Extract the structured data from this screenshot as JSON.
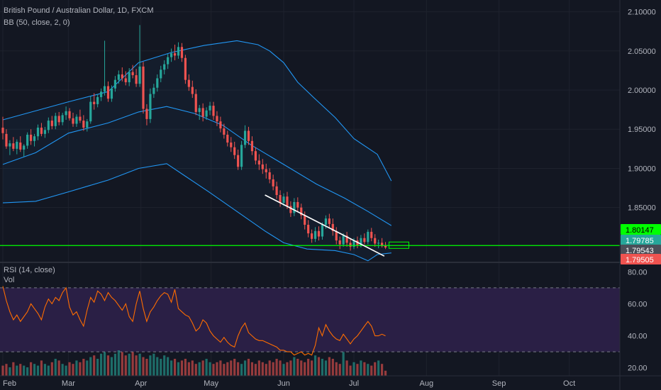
{
  "header": {
    "title": "British Pound / Australian Dollar, 1D, FXCM",
    "bb_label": "BB (50, close, 2, 0)",
    "rsi_label": "RSI (14, close)",
    "vol_label": "Vol"
  },
  "colors": {
    "background": "#131722",
    "grid": "#1e222d",
    "up": "#26a69a",
    "down": "#ef5350",
    "bb": "#2196f3",
    "rsi_line": "#ff6d00",
    "rsi_band": "#2a1f45",
    "horizontal_line": "#00ff00",
    "trendline": "#ffffff"
  },
  "chart_data": [
    {
      "type": "candlestick",
      "title": "British Pound / Australian Dollar, 1D, FXCM",
      "indicator": "BB (50, close, 2, 0)",
      "x_tick_labels": [
        "Feb",
        "Mar",
        "Apr",
        "May",
        "Jun",
        "Jul",
        "Aug",
        "Sep",
        "Oct"
      ],
      "x_tick_days": [
        0,
        28,
        59,
        89,
        120,
        150,
        181,
        212,
        242
      ],
      "y_tick_labels": [
        "2.10000",
        "2.05000",
        "2.00000",
        "1.95000",
        "1.90000",
        "1.85000"
      ],
      "ylim": [
        1.78,
        2.115
      ],
      "price_labels": [
        {
          "text": "1.80147",
          "value": 1.80147,
          "color": "#00ff00",
          "text_color": "#000000"
        },
        {
          "text": "1.79785",
          "value": 1.79785,
          "color": "#26a69a",
          "text_color": "#ffffff"
        },
        {
          "text": "1.79543",
          "value": 1.79543,
          "color": "#4a4e58",
          "text_color": "#ffffff"
        },
        {
          "text": "1.79505",
          "value": 1.79505,
          "color": "#ef5350",
          "text_color": "#ffffff"
        }
      ],
      "horizontal_line": 1.80147,
      "trendline": {
        "start": [
          112,
          1.866
        ],
        "end": [
          163,
          1.788
        ]
      },
      "candles_ohlc": [
        [
          1.952,
          1.966,
          1.937,
          1.945
        ],
        [
          1.944,
          1.95,
          1.925,
          1.928
        ],
        [
          1.928,
          1.936,
          1.917,
          1.932
        ],
        [
          1.932,
          1.94,
          1.922,
          1.925
        ],
        [
          1.925,
          1.937,
          1.918,
          1.934
        ],
        [
          1.933,
          1.941,
          1.921,
          1.924
        ],
        [
          1.924,
          1.931,
          1.915,
          1.929
        ],
        [
          1.929,
          1.946,
          1.925,
          1.943
        ],
        [
          1.943,
          1.95,
          1.93,
          1.935
        ],
        [
          1.935,
          1.944,
          1.928,
          1.941
        ],
        [
          1.941,
          1.956,
          1.936,
          1.952
        ],
        [
          1.952,
          1.958,
          1.941,
          1.944
        ],
        [
          1.944,
          1.953,
          1.939,
          1.949
        ],
        [
          1.949,
          1.965,
          1.945,
          1.961
        ],
        [
          1.961,
          1.967,
          1.95,
          1.954
        ],
        [
          1.954,
          1.971,
          1.95,
          1.967
        ],
        [
          1.967,
          1.972,
          1.955,
          1.959
        ],
        [
          1.959,
          1.971,
          1.955,
          1.968
        ],
        [
          1.968,
          1.979,
          1.962,
          1.973
        ],
        [
          1.973,
          1.977,
          1.961,
          1.964
        ],
        [
          1.964,
          1.971,
          1.953,
          1.957
        ],
        [
          1.957,
          1.969,
          1.953,
          1.966
        ],
        [
          1.966,
          1.975,
          1.958,
          1.961
        ],
        [
          1.961,
          1.968,
          1.948,
          1.952
        ],
        [
          1.952,
          1.963,
          1.947,
          1.96
        ],
        [
          1.96,
          1.992,
          1.957,
          1.985
        ],
        [
          1.985,
          1.996,
          1.975,
          1.982
        ],
        [
          1.982,
          1.995,
          1.978,
          1.991
        ],
        [
          1.991,
          2.002,
          1.986,
          1.998
        ],
        [
          1.998,
          2.063,
          1.993,
          2.005
        ],
        [
          2.005,
          2.011,
          1.985,
          1.989
        ],
        [
          1.989,
          2.006,
          1.985,
          2.002
        ],
        [
          2.002,
          2.018,
          1.998,
          2.013
        ],
        [
          2.013,
          2.025,
          2.008,
          2.02
        ],
        [
          2.02,
          2.029,
          2.011,
          2.015
        ],
        [
          2.015,
          2.024,
          2.006,
          2.01
        ],
        [
          2.01,
          2.028,
          2.005,
          2.023
        ],
        [
          2.023,
          2.032,
          2.015,
          2.019
        ],
        [
          2.019,
          2.027,
          2.004,
          2.008
        ],
        [
          2.008,
          2.083,
          2.004,
          2.03
        ],
        [
          2.03,
          2.036,
          1.97,
          1.976
        ],
        [
          1.976,
          1.982,
          1.955,
          1.963
        ],
        [
          1.963,
          2.002,
          1.958,
          1.995
        ],
        [
          1.995,
          2.008,
          1.99,
          2.003
        ],
        [
          2.003,
          2.02,
          1.998,
          2.015
        ],
        [
          2.015,
          2.031,
          2.01,
          2.026
        ],
        [
          2.026,
          2.038,
          2.02,
          2.033
        ],
        [
          2.033,
          2.046,
          2.027,
          2.042
        ],
        [
          2.042,
          2.053,
          2.036,
          2.047
        ],
        [
          2.047,
          2.058,
          2.038,
          2.044
        ],
        [
          2.044,
          2.061,
          2.04,
          2.055
        ],
        [
          2.055,
          2.06,
          2.036,
          2.041
        ],
        [
          2.041,
          2.045,
          2.008,
          2.013
        ],
        [
          2.013,
          2.02,
          1.999,
          2.004
        ],
        [
          2.004,
          2.012,
          1.99,
          1.995
        ],
        [
          1.995,
          2.001,
          1.968,
          1.972
        ],
        [
          1.972,
          1.981,
          1.962,
          1.977
        ],
        [
          1.977,
          1.983,
          1.96,
          1.966
        ],
        [
          1.966,
          1.978,
          1.962,
          1.974
        ],
        [
          1.974,
          1.985,
          1.968,
          1.98
        ],
        [
          1.98,
          1.985,
          1.962,
          1.967
        ],
        [
          1.967,
          1.973,
          1.954,
          1.96
        ],
        [
          1.96,
          1.966,
          1.946,
          1.951
        ],
        [
          1.951,
          1.957,
          1.938,
          1.943
        ],
        [
          1.943,
          1.948,
          1.928,
          1.933
        ],
        [
          1.933,
          1.94,
          1.921,
          1.927
        ],
        [
          1.927,
          1.934,
          1.912,
          1.917
        ],
        [
          1.917,
          1.924,
          1.898,
          1.902
        ],
        [
          1.902,
          1.935,
          1.898,
          1.93
        ],
        [
          1.93,
          1.955,
          1.926,
          1.948
        ],
        [
          1.948,
          1.953,
          1.93,
          1.935
        ],
        [
          1.935,
          1.941,
          1.917,
          1.922
        ],
        [
          1.922,
          1.927,
          1.905,
          1.91
        ],
        [
          1.91,
          1.918,
          1.898,
          1.905
        ],
        [
          1.905,
          1.912,
          1.893,
          1.899
        ],
        [
          1.899,
          1.906,
          1.887,
          1.895
        ],
        [
          1.895,
          1.9,
          1.881,
          1.886
        ],
        [
          1.886,
          1.892,
          1.872,
          1.877
        ],
        [
          1.877,
          1.883,
          1.861,
          1.866
        ],
        [
          1.866,
          1.872,
          1.851,
          1.856
        ],
        [
          1.856,
          1.868,
          1.852,
          1.864
        ],
        [
          1.864,
          1.87,
          1.848,
          1.852
        ],
        [
          1.852,
          1.858,
          1.838,
          1.843
        ],
        [
          1.843,
          1.862,
          1.839,
          1.857
        ],
        [
          1.857,
          1.863,
          1.845,
          1.85
        ],
        [
          1.85,
          1.855,
          1.835,
          1.84
        ],
        [
          1.84,
          1.845,
          1.822,
          1.828
        ],
        [
          1.828,
          1.834,
          1.812,
          1.817
        ],
        [
          1.817,
          1.822,
          1.805,
          1.81
        ],
        [
          1.81,
          1.825,
          1.806,
          1.82
        ],
        [
          1.82,
          1.826,
          1.808,
          1.813
        ],
        [
          1.813,
          1.831,
          1.809,
          1.828
        ],
        [
          1.828,
          1.84,
          1.823,
          1.836
        ],
        [
          1.836,
          1.842,
          1.824,
          1.829
        ],
        [
          1.829,
          1.836,
          1.814,
          1.82
        ],
        [
          1.82,
          1.825,
          1.803,
          1.808
        ],
        [
          1.808,
          1.813,
          1.797,
          1.803
        ],
        [
          1.803,
          1.817,
          1.8,
          1.814
        ],
        [
          1.814,
          1.819,
          1.8,
          1.805
        ],
        [
          1.805,
          1.81,
          1.795,
          1.8
        ],
        [
          1.8,
          1.811,
          1.797,
          1.808
        ],
        [
          1.808,
          1.813,
          1.798,
          1.802
        ],
        [
          1.802,
          1.815,
          1.799,
          1.811
        ],
        [
          1.811,
          1.817,
          1.803,
          1.806
        ],
        [
          1.806,
          1.822,
          1.803,
          1.819
        ],
        [
          1.819,
          1.824,
          1.807,
          1.811
        ],
        [
          1.811,
          1.816,
          1.8,
          1.804
        ],
        [
          1.804,
          1.809,
          1.798,
          1.805
        ],
        [
          1.805,
          1.811,
          1.799,
          1.801
        ],
        [
          1.801,
          1.806,
          1.797,
          1.799
        ]
      ],
      "candle_start_day": 0,
      "bb_upper": [
        [
          0,
          1.962
        ],
        [
          28,
          1.985
        ],
        [
          45,
          1.998
        ],
        [
          58,
          2.035
        ],
        [
          72,
          2.048
        ],
        [
          86,
          2.057
        ],
        [
          100,
          2.063
        ],
        [
          109,
          2.058
        ],
        [
          114,
          2.05
        ],
        [
          120,
          2.035
        ],
        [
          126,
          2.01
        ],
        [
          133,
          1.99
        ],
        [
          142,
          1.965
        ],
        [
          150,
          1.938
        ],
        [
          160,
          1.918
        ],
        [
          166,
          1.884
        ]
      ],
      "bb_basis": [
        [
          0,
          1.905
        ],
        [
          14,
          1.92
        ],
        [
          28,
          1.945
        ],
        [
          45,
          1.958
        ],
        [
          58,
          1.972
        ],
        [
          70,
          1.979
        ],
        [
          82,
          1.97
        ],
        [
          94,
          1.955
        ],
        [
          106,
          1.93
        ],
        [
          120,
          1.905
        ],
        [
          134,
          1.88
        ],
        [
          146,
          1.862
        ],
        [
          156,
          1.845
        ],
        [
          166,
          1.827
        ]
      ],
      "bb_lower": [
        [
          0,
          1.856
        ],
        [
          14,
          1.858
        ],
        [
          28,
          1.87
        ],
        [
          45,
          1.885
        ],
        [
          58,
          1.9
        ],
        [
          70,
          1.906
        ],
        [
          78,
          1.89
        ],
        [
          88,
          1.87
        ],
        [
          100,
          1.845
        ],
        [
          112,
          1.82
        ],
        [
          120,
          1.805
        ],
        [
          130,
          1.797
        ],
        [
          142,
          1.795
        ],
        [
          150,
          1.79
        ],
        [
          156,
          1.782
        ],
        [
          160,
          1.79
        ],
        [
          166,
          1.792
        ]
      ]
    },
    {
      "type": "line",
      "title": "RSI (14, close)",
      "y_tick_labels": [
        "80.00",
        "60.00",
        "40.00",
        "20.00"
      ],
      "ylim": [
        15,
        85
      ],
      "band": [
        30,
        70
      ],
      "rsi_values": [
        71,
        62,
        55,
        50,
        53,
        49,
        52,
        55,
        60,
        57,
        54,
        50,
        58,
        63,
        60,
        64,
        62,
        67,
        70,
        58,
        53,
        55,
        50,
        46,
        56,
        64,
        61,
        68,
        66,
        62,
        67,
        64,
        62,
        59,
        56,
        60,
        52,
        49,
        60,
        68,
        57,
        49,
        55,
        58,
        62,
        65,
        67,
        66,
        61,
        69,
        57,
        55,
        53,
        52,
        48,
        43,
        45,
        50,
        48,
        43,
        40,
        38,
        36,
        39,
        36,
        34,
        33,
        40,
        45,
        48,
        42,
        40,
        38,
        37,
        37,
        36,
        35,
        34,
        33,
        31,
        31,
        30,
        30,
        28,
        29,
        30,
        28,
        29,
        28,
        34,
        45,
        40,
        47,
        43,
        40,
        38,
        37,
        41,
        38,
        35,
        38,
        40,
        43,
        46,
        49,
        46,
        40,
        40,
        41,
        40
      ],
      "volume_values": [
        6,
        7,
        5,
        8,
        6,
        7,
        6,
        5,
        8,
        7,
        6,
        9,
        7,
        6,
        8,
        10,
        9,
        7,
        6,
        8,
        7,
        9,
        8,
        10,
        9,
        11,
        12,
        10,
        13,
        14,
        12,
        11,
        13,
        15,
        14,
        12,
        13,
        14,
        12,
        13,
        11,
        10,
        12,
        13,
        11,
        10,
        12,
        11,
        9,
        10,
        8,
        9,
        10,
        8,
        9,
        7,
        8,
        9,
        10,
        8,
        7,
        8,
        9,
        7,
        8,
        9,
        10,
        8,
        7,
        9,
        10,
        8,
        7,
        9,
        8,
        7,
        9,
        8,
        10,
        9,
        7,
        8,
        9,
        11,
        10,
        9,
        8,
        10,
        9,
        12,
        11,
        10,
        9,
        11,
        10,
        8,
        7,
        14,
        9,
        6,
        8,
        7,
        9,
        8,
        7,
        6,
        8,
        9,
        7,
        3
      ]
    }
  ]
}
